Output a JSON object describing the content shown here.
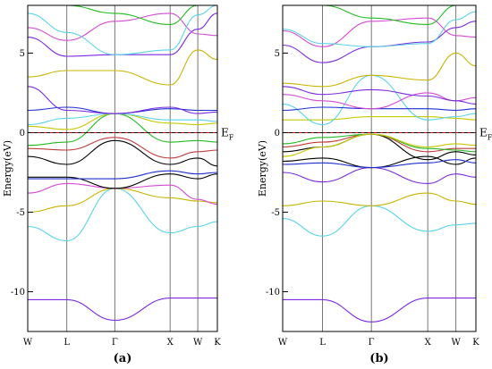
{
  "chart_data": [
    {
      "type": "line",
      "panel_label": "(a)",
      "ylabel": "Energy(eV)",
      "ylim": [
        -12.5,
        8.0
      ],
      "yticks": [
        -10,
        -5,
        0,
        5
      ],
      "k_labels": [
        "W",
        "L",
        "Γ",
        "X",
        "W",
        "K"
      ],
      "k_positions": [
        0.0,
        0.707,
        1.573,
        2.573,
        3.073,
        3.427
      ],
      "fermi_label": "E_F",
      "fermi_level": 0,
      "bands": [
        {
          "color": "#7b2ae0",
          "y": [
            -10.5,
            -10.5,
            -11.8,
            -10.4,
            -10.4,
            -10.4
          ]
        },
        {
          "color": "#5ad3e8",
          "y": [
            -5.9,
            -6.8,
            -3.5,
            -6.3,
            -5.9,
            -5.6
          ]
        },
        {
          "color": "#c8b400",
          "y": [
            -5.0,
            -4.6,
            -3.5,
            -4.1,
            -4.3,
            -4.4
          ]
        },
        {
          "color": "#d44bd4",
          "y": [
            -3.8,
            -3.2,
            -3.5,
            -3.3,
            -4.2,
            -4.5
          ]
        },
        {
          "color": "#000000",
          "y": [
            -2.8,
            -2.8,
            -3.5,
            -2.6,
            -2.9,
            -2.6
          ]
        },
        {
          "color": "#1e2fd1",
          "y": [
            -2.9,
            -2.9,
            -2.9,
            -2.4,
            -2.6,
            -2.5
          ]
        },
        {
          "color": "#000000",
          "y": [
            -1.5,
            -2.0,
            -0.5,
            -2.0,
            -1.6,
            -2.1
          ]
        },
        {
          "color": "#c23b3b",
          "y": [
            -1.0,
            -1.1,
            -0.3,
            -1.6,
            -1.2,
            -1.1
          ]
        },
        {
          "color": "#22bb22",
          "y": [
            -0.8,
            -0.6,
            1.2,
            -0.6,
            -0.5,
            -0.6
          ]
        },
        {
          "color": "#c8c800",
          "y": [
            0.4,
            0.2,
            1.2,
            0.6,
            0.5,
            0.6
          ]
        },
        {
          "color": "#5ad3e8",
          "y": [
            0.5,
            0.9,
            1.2,
            0.8,
            0.8,
            0.7
          ]
        },
        {
          "color": "#1e2fd1",
          "y": [
            1.4,
            1.6,
            1.2,
            1.5,
            1.4,
            1.4
          ]
        },
        {
          "color": "#7b2ae0",
          "y": [
            2.9,
            1.4,
            1.2,
            1.6,
            1.2,
            1.3
          ]
        },
        {
          "color": "#c8b400",
          "y": [
            3.5,
            3.9,
            3.9,
            3.0,
            5.2,
            4.6
          ]
        },
        {
          "color": "#7b2ae0",
          "y": [
            6.0,
            4.8,
            4.9,
            4.9,
            6.5,
            7.5
          ]
        },
        {
          "color": "#d44bd4",
          "y": [
            6.6,
            5.8,
            7.0,
            7.5,
            6.2,
            6.1
          ]
        },
        {
          "color": "#5ad3e8",
          "y": [
            7.5,
            6.3,
            4.9,
            5.2,
            7.4,
            8.0
          ]
        },
        {
          "color": "#22bb22",
          "y": [
            8.0,
            8.0,
            7.5,
            6.8,
            8.0,
            8.0
          ]
        }
      ]
    },
    {
      "type": "line",
      "panel_label": "(b)",
      "ylabel": "Energy(eV)",
      "ylim": [
        -12.5,
        8.0
      ],
      "yticks": [
        -10,
        -5,
        0,
        5
      ],
      "k_labels": [
        "W",
        "L",
        "Γ",
        "X",
        "W",
        "K"
      ],
      "k_positions": [
        0.0,
        0.707,
        1.573,
        2.573,
        3.073,
        3.427
      ],
      "fermi_label": "E_F",
      "fermi_level": 0,
      "bands": [
        {
          "color": "#7b2ae0",
          "y": [
            -10.5,
            -10.5,
            -11.9,
            -10.4,
            -10.4,
            -10.4
          ]
        },
        {
          "color": "#5ad3e8",
          "y": [
            -5.4,
            -6.5,
            -4.6,
            -6.2,
            -5.8,
            -5.7
          ]
        },
        {
          "color": "#c8b400",
          "y": [
            -4.6,
            -4.3,
            -4.6,
            -3.8,
            -4.3,
            -4.5
          ]
        },
        {
          "color": "#7b2ae0",
          "y": [
            -2.5,
            -3.1,
            -2.2,
            -3.2,
            -2.6,
            -2.8
          ]
        },
        {
          "color": "#000000",
          "y": [
            -1.8,
            -1.6,
            -2.2,
            -1.5,
            -2.0,
            -1.6
          ]
        },
        {
          "color": "#1e2fd1",
          "y": [
            -2.0,
            -1.9,
            -2.2,
            -1.9,
            -1.7,
            -1.9
          ]
        },
        {
          "color": "#000000",
          "y": [
            -1.2,
            -0.9,
            -0.1,
            -1.7,
            -1.2,
            -1.4
          ]
        },
        {
          "color": "#c23b3b",
          "y": [
            -0.9,
            -0.6,
            -0.1,
            -1.2,
            -1.0,
            -1.0
          ]
        },
        {
          "color": "#22bb22",
          "y": [
            -0.7,
            -0.3,
            -0.1,
            -1.0,
            -1.1,
            -1.2
          ]
        },
        {
          "color": "#c8c800",
          "y": [
            -1.5,
            -0.9,
            -0.1,
            -0.9,
            -0.7,
            -0.8
          ]
        },
        {
          "color": "#c8c800",
          "y": [
            0.8,
            0.8,
            1.0,
            1.0,
            0.9,
            0.8
          ]
        },
        {
          "color": "#5ad3e8",
          "y": [
            1.8,
            0.5,
            3.6,
            0.8,
            1.0,
            1.2
          ]
        },
        {
          "color": "#1e2fd1",
          "y": [
            1.4,
            1.6,
            1.5,
            1.5,
            1.4,
            1.5
          ]
        },
        {
          "color": "#d44bd4",
          "y": [
            2.4,
            2.0,
            1.5,
            2.5,
            2.0,
            2.2
          ]
        },
        {
          "color": "#7b2ae0",
          "y": [
            2.9,
            2.4,
            2.7,
            2.3,
            2.0,
            1.8
          ]
        },
        {
          "color": "#c8b400",
          "y": [
            3.1,
            2.9,
            3.6,
            3.3,
            5.0,
            4.2
          ]
        },
        {
          "color": "#7b2ae0",
          "y": [
            5.5,
            4.4,
            5.4,
            5.7,
            6.6,
            7.0
          ]
        },
        {
          "color": "#d44bd4",
          "y": [
            6.4,
            5.4,
            7.0,
            7.2,
            6.1,
            6.0
          ]
        },
        {
          "color": "#5ad3e8",
          "y": [
            6.5,
            5.6,
            5.4,
            5.6,
            7.1,
            7.6
          ]
        },
        {
          "color": "#22bb22",
          "y": [
            8.0,
            8.0,
            7.2,
            6.8,
            8.0,
            8.0
          ]
        }
      ]
    }
  ]
}
